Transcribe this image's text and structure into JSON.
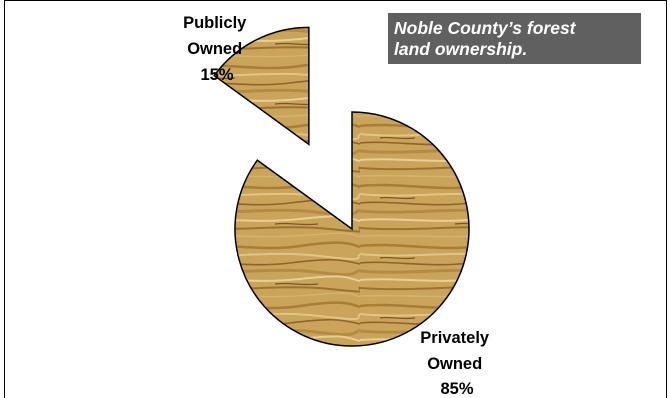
{
  "chart_data": {
    "type": "pie",
    "title_lines": [
      "Noble County’s forest",
      "land ownership."
    ],
    "slices": [
      {
        "label_lines": [
          "Publicly",
          "Owned",
          "15%"
        ],
        "value": 15
      },
      {
        "label_lines": [
          "Privately",
          "Owned",
          "85%"
        ],
        "value": 85
      }
    ],
    "exploded_slice": "Publicly Owned",
    "fill_texture": "oak-wood-grain",
    "colors": {
      "title_bg": "#606060",
      "title_text": "#ffffff",
      "outline": "#000000",
      "wood_base": "#c9a45a"
    }
  }
}
